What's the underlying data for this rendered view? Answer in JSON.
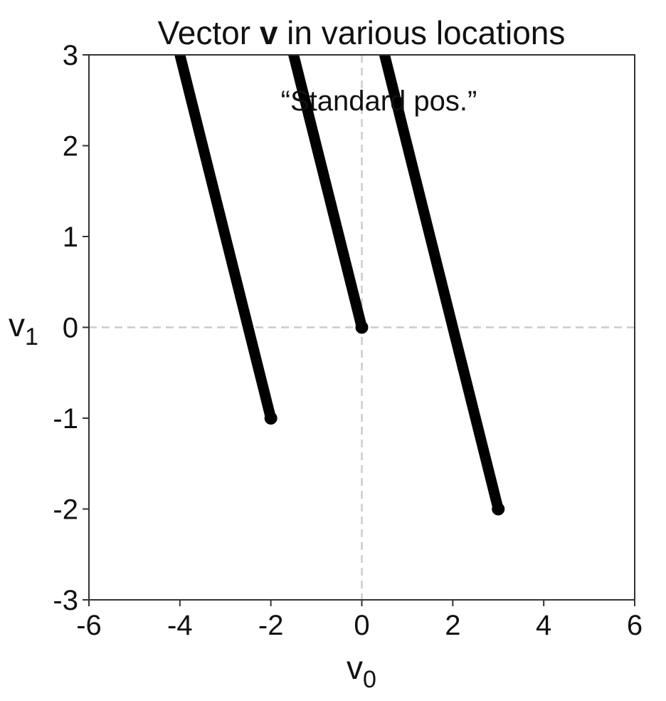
{
  "chart_data": {
    "type": "vector",
    "title": "Vector v in various locations",
    "title_parts": [
      {
        "text": "Vector ",
        "bold": false
      },
      {
        "text": "v",
        "bold": true
      },
      {
        "text": " in various locations",
        "bold": false
      }
    ],
    "xlabel": {
      "base": "v",
      "sub": "0"
    },
    "ylabel": {
      "base": "v",
      "sub": "1"
    },
    "xlim": [
      -6,
      6
    ],
    "ylim": [
      -3,
      3
    ],
    "xticks": [
      -6,
      -4,
      -2,
      0,
      2,
      4,
      6
    ],
    "yticks": [
      -3,
      -2,
      -1,
      0,
      1,
      2,
      3
    ],
    "xtick_labels": [
      "-6",
      "-4",
      "-2",
      "0",
      "2",
      "4",
      "6"
    ],
    "ytick_labels": [
      "-3",
      "-2",
      "-1",
      "0",
      "1",
      "2",
      "3"
    ],
    "vector": [
      -3,
      6
    ],
    "vectors": [
      {
        "start": [
          0,
          0
        ],
        "end": [
          -3,
          6
        ]
      },
      {
        "start": [
          -2,
          -1
        ],
        "end": [
          -5,
          5
        ]
      },
      {
        "start": [
          3,
          -2
        ],
        "end": [
          0,
          4
        ]
      }
    ],
    "reference_lines": [
      {
        "orientation": "horizontal",
        "value": 0,
        "style": "dashed"
      },
      {
        "orientation": "vertical",
        "value": 0,
        "style": "dashed"
      }
    ],
    "annotations": [
      {
        "text": "“Standard pos.”",
        "x": 0,
        "y": 2.5
      }
    ],
    "grid": false,
    "colors": {
      "vector": "#000000",
      "reference_lines": "#cccccc",
      "axes": "#333333"
    }
  }
}
